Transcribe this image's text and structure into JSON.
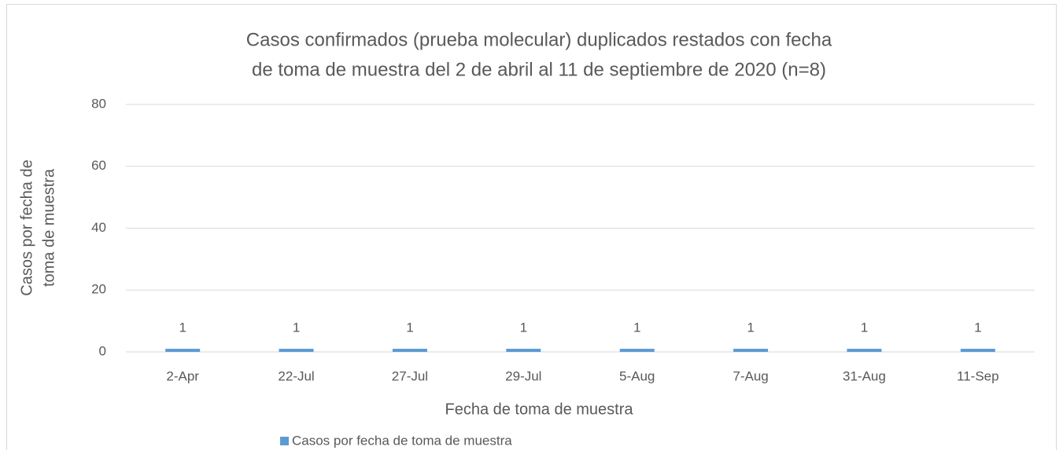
{
  "chart_data": {
    "type": "bar",
    "title": [
      "Casos confirmados (prueba molecular) duplicados restados con fecha",
      "de toma de muestra del 2 de abril al 11 de septiembre de 2020 (n=8)"
    ],
    "x_label": "Fecha de toma de muestra",
    "y_label": [
      "Casos por fecha de",
      "toma de muestra"
    ],
    "categories": [
      "2-Apr",
      "22-Jul",
      "27-Jul",
      "29-Jul",
      "5-Aug",
      "7-Aug",
      "31-Aug",
      "11-Sep"
    ],
    "series": [
      {
        "name": "Casos por fecha de toma de muestra",
        "color": "#5b9bd5",
        "values": [
          1,
          1,
          1,
          1,
          1,
          1,
          1,
          1
        ]
      }
    ],
    "ylim": [
      0,
      80
    ],
    "yticks": [
      0,
      20,
      40,
      60,
      80
    ],
    "grid": true,
    "legend": "bottom",
    "data_labels": true
  }
}
